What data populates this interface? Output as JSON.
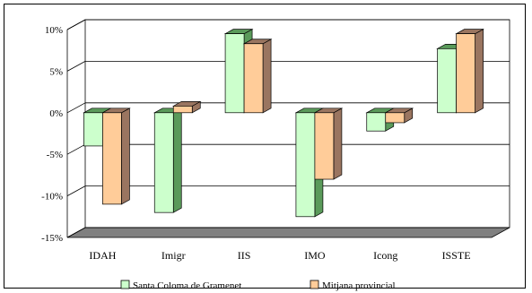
{
  "chart_data": {
    "type": "bar",
    "categories": [
      "IDAH",
      "Imigr",
      "IIS",
      "IMO",
      "Icong",
      "ISSTE"
    ],
    "series": [
      {
        "name": "Santa Coloma de Gramenet",
        "values": [
          -4,
          -12,
          9.5,
          -12.5,
          -2.2,
          7.7
        ],
        "color": "#ccffcc",
        "side_color": "#5a9a5a"
      },
      {
        "name": "Mitjana provincial",
        "values": [
          -11,
          0.8,
          8.3,
          -8,
          -1.2,
          9.5
        ],
        "color": "#ffcc99",
        "side_color": "#9a7560"
      }
    ],
    "yticks": [
      "10%",
      "5%",
      "0%",
      "-5%",
      "-10%",
      "-15%"
    ],
    "ylim": [
      -15,
      10
    ],
    "grid": true,
    "legend": "bottom",
    "floor_color": "#808080"
  }
}
